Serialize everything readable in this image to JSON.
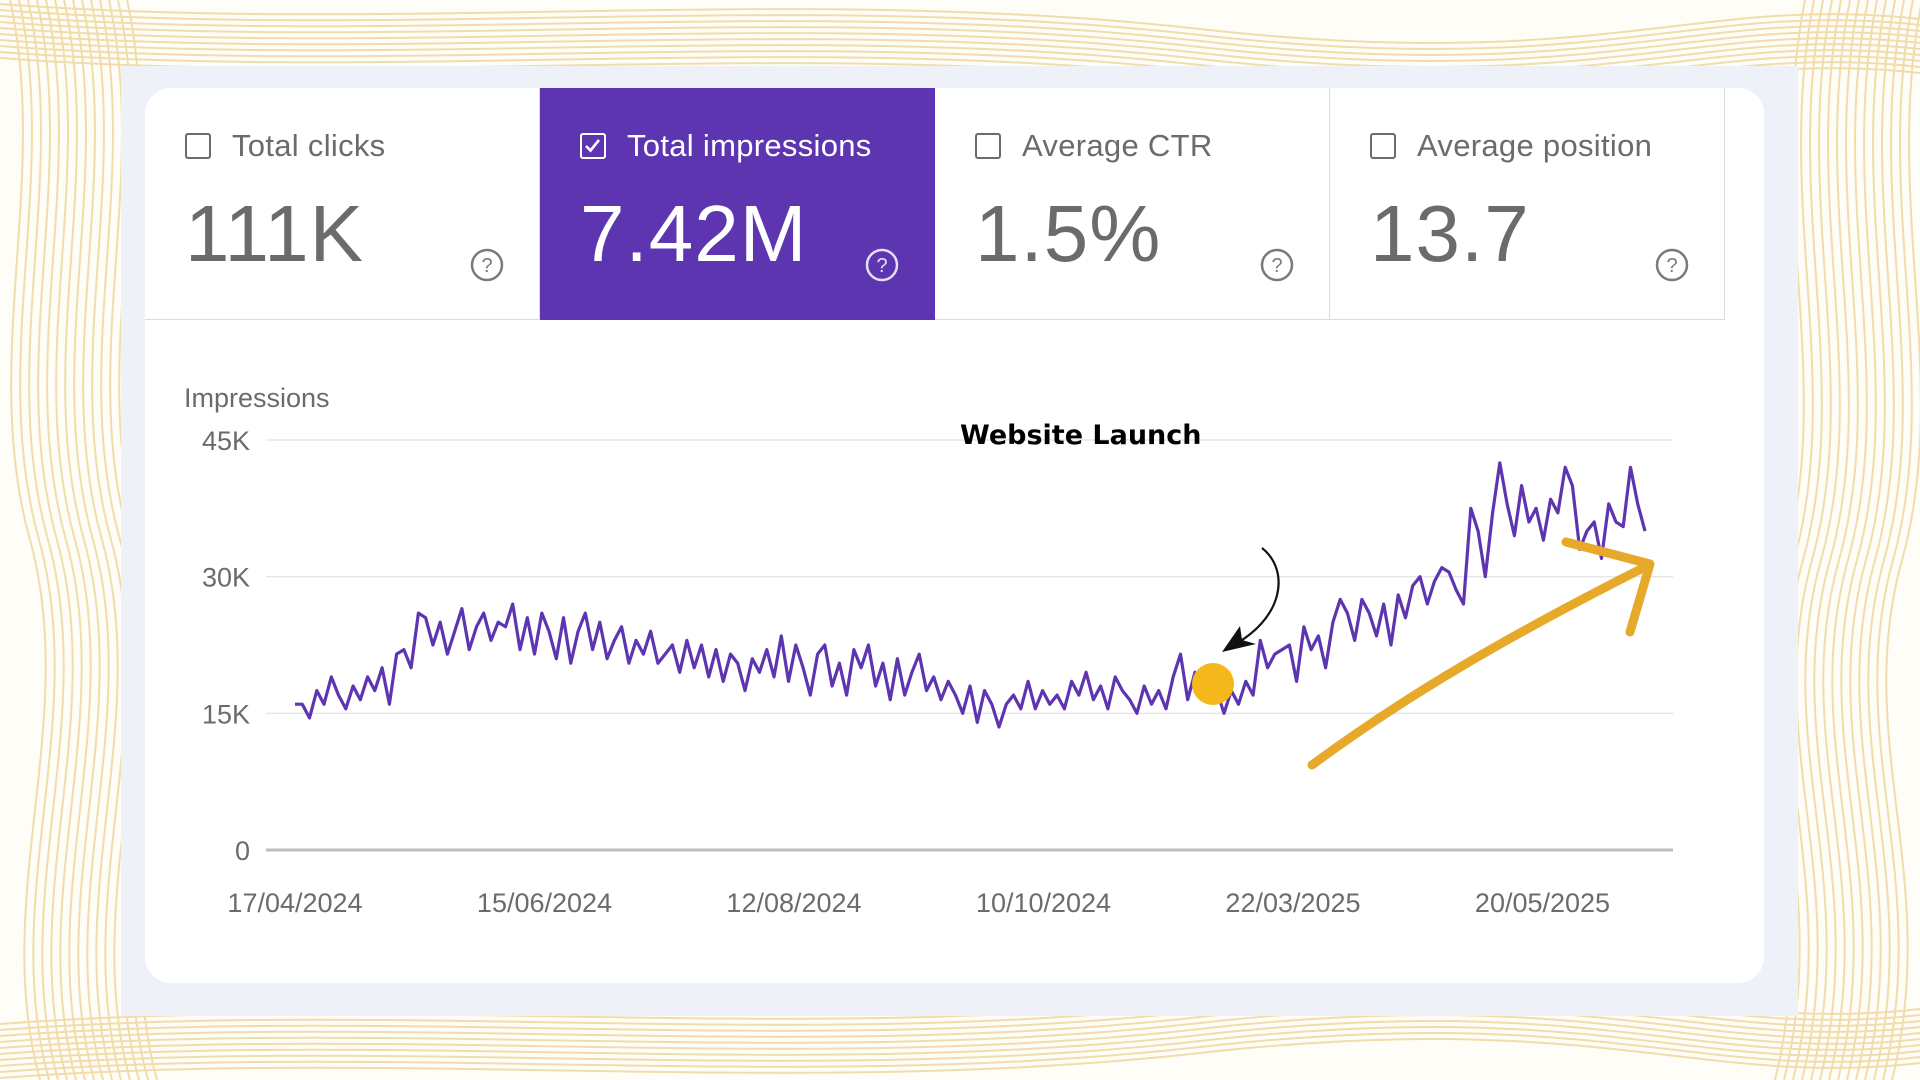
{
  "metrics": [
    {
      "label": "Total clicks",
      "value": "111K",
      "checked": false
    },
    {
      "label": "Total impressions",
      "value": "7.42M",
      "checked": true
    },
    {
      "label": "Average CTR",
      "value": "1.5%",
      "checked": false
    },
    {
      "label": "Average position",
      "value": "13.7",
      "checked": false
    }
  ],
  "icons": {
    "checkbox": "checkbox-icon",
    "help": "help-circle-icon",
    "arrow": "trend-arrow-icon"
  },
  "colors": {
    "accent": "#5e35b1",
    "line": "#5e35b1",
    "highlight": "#f5b81c",
    "arrow": "#e6a92a"
  },
  "annotation": "Website Launch",
  "chart_data": {
    "type": "line",
    "title": "",
    "ylabel": "Impressions",
    "xlabel": "",
    "ylim": [
      0,
      45000
    ],
    "yticks": [
      0,
      15000,
      30000,
      45000
    ],
    "ytick_labels": [
      "0",
      "15K",
      "30K",
      "45K"
    ],
    "xtick_labels": [
      "17/04/2024",
      "15/06/2024",
      "12/08/2024",
      "10/10/2024",
      "22/03/2025",
      "20/05/2025"
    ],
    "grid": true,
    "series": [
      {
        "values": [
          16000,
          16000,
          14500,
          17500,
          16000,
          19000,
          17000,
          15500,
          18000,
          16500,
          19000,
          17500,
          20000,
          16000,
          21500,
          22000,
          20000,
          26000,
          25500,
          22500,
          25000,
          21500,
          24000,
          26500,
          22000,
          24500,
          26000,
          23000,
          25000,
          24500,
          27000,
          22000,
          25500,
          21500,
          26000,
          24000,
          21000,
          25500,
          20500,
          24000,
          26000,
          22000,
          25000,
          21000,
          23000,
          24500,
          20500,
          23000,
          21500,
          24000,
          20500,
          21500,
          22500,
          19500,
          23000,
          20000,
          22500,
          19000,
          22000,
          18500,
          21500,
          20500,
          17500,
          21000,
          19500,
          22000,
          19000,
          23500,
          18500,
          22500,
          20000,
          17000,
          21500,
          22500,
          18000,
          20500,
          17000,
          22000,
          20000,
          22500,
          18000,
          20500,
          16500,
          21000,
          17000,
          19500,
          21500,
          17500,
          19000,
          16500,
          18500,
          17000,
          15000,
          18000,
          14000,
          17500,
          16000,
          13500,
          16000,
          17000,
          15500,
          18500,
          15500,
          17500,
          16000,
          17000,
          15500,
          18500,
          17000,
          19500,
          16500,
          18000,
          15500,
          19000,
          17500,
          16500,
          15000,
          18000,
          16000,
          17500,
          15500,
          19000,
          21500,
          16500,
          19500,
          17000,
          20000,
          17500,
          15000,
          17500,
          16000,
          18500,
          17000,
          23000,
          20000,
          21500,
          22000,
          22500,
          18500,
          24500,
          22000,
          23500,
          20000,
          25000,
          27500,
          26000,
          23000,
          27500,
          26000,
          23500,
          27000,
          22500,
          28000,
          25500,
          29000,
          30000,
          27000,
          29500,
          31000,
          30500,
          28500,
          27000,
          37500,
          35000,
          30000,
          37000,
          42500,
          38000,
          34500,
          40000,
          36000,
          37500,
          34000,
          38500,
          37000,
          42000,
          40000,
          33000,
          35000,
          36000,
          32000,
          38000,
          36000,
          35500,
          42000,
          38000,
          35000
        ]
      }
    ]
  }
}
